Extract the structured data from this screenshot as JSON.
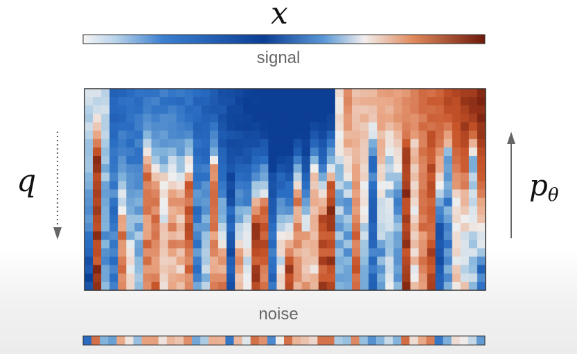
{
  "labels": {
    "top_variable": "x",
    "forward_process": "q",
    "reverse_process_base": "p",
    "reverse_process_sub": "θ",
    "signal": "signal",
    "noise": "noise"
  },
  "colors": {
    "blue_deep": "#0b3e94",
    "blue_mid": "#2b6fc4",
    "blue_light": "#86b6dc",
    "neutral": "#efefef",
    "red_light": "#e9a583",
    "red_mid": "#c8552a",
    "red_deep": "#6e1a0c",
    "arrow": "#666666",
    "frame": "#333333"
  },
  "grid": {
    "columns": 48,
    "rows": 24
  }
}
